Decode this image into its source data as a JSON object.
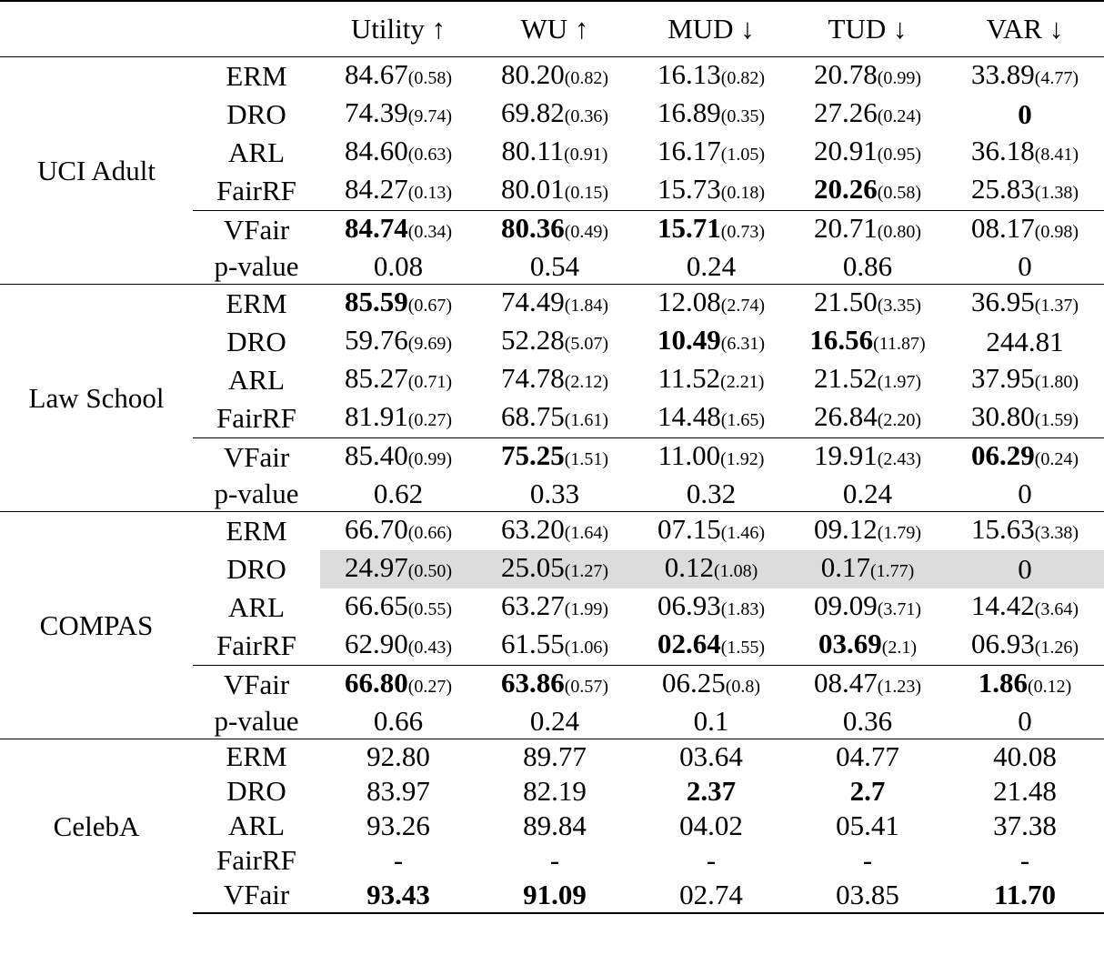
{
  "header": [
    "",
    "",
    "Utility ↑",
    "WU ↑",
    "MUD ↓",
    "TUD ↓",
    "VAR ↓"
  ],
  "groups": [
    {
      "dataset": "UCI Adult",
      "rows": [
        {
          "method": "ERM",
          "cells": [
            [
              "84.67",
              "(0.58)",
              false
            ],
            [
              "80.20",
              "(0.82)",
              false
            ],
            [
              "16.13",
              "(0.82)",
              false
            ],
            [
              "20.78",
              "(0.99)",
              false
            ],
            [
              "33.89",
              "(4.77)",
              false
            ]
          ]
        },
        {
          "method": "DRO",
          "cells": [
            [
              "74.39",
              "(9.74)",
              false
            ],
            [
              "69.82",
              "(0.36)",
              false
            ],
            [
              "16.89",
              "(0.35)",
              false
            ],
            [
              "27.26",
              "(0.24)",
              false
            ],
            [
              "0",
              "",
              true
            ]
          ]
        },
        {
          "method": "ARL",
          "cells": [
            [
              "84.60",
              "(0.63)",
              false
            ],
            [
              "80.11",
              "(0.91)",
              false
            ],
            [
              "16.17",
              "(1.05)",
              false
            ],
            [
              "20.91",
              "(0.95)",
              false
            ],
            [
              "36.18",
              "(8.41)",
              false
            ]
          ]
        },
        {
          "method": "FairRF",
          "cells": [
            [
              "84.27",
              "(0.13)",
              false
            ],
            [
              "80.01",
              "(0.15)",
              false
            ],
            [
              "15.73",
              "(0.18)",
              false
            ],
            [
              "20.26",
              "(0.58)",
              true
            ],
            [
              "25.83",
              "(1.38)",
              false
            ]
          ]
        },
        {
          "method": "VFair",
          "sep": true,
          "cells": [
            [
              "84.74",
              "(0.34)",
              true
            ],
            [
              "80.36",
              "(0.49)",
              true
            ],
            [
              "15.71",
              "(0.73)",
              true
            ],
            [
              "20.71",
              "(0.80)",
              false
            ],
            [
              "08.17",
              "(0.98)",
              false
            ]
          ]
        },
        {
          "method": "p-value",
          "cells": [
            [
              "0.08",
              "",
              false
            ],
            [
              "0.54",
              "",
              false
            ],
            [
              "0.24",
              "",
              false
            ],
            [
              "0.86",
              "",
              false
            ],
            [
              "0",
              "",
              false
            ]
          ]
        }
      ]
    },
    {
      "dataset": "Law School",
      "rows": [
        {
          "method": "ERM",
          "cells": [
            [
              "85.59",
              "(0.67)",
              true
            ],
            [
              "74.49",
              "(1.84)",
              false
            ],
            [
              "12.08",
              "(2.74)",
              false
            ],
            [
              "21.50",
              "(3.35)",
              false
            ],
            [
              "36.95",
              "(1.37)",
              false
            ]
          ]
        },
        {
          "method": "DRO",
          "cells": [
            [
              "59.76",
              "(9.69)",
              false
            ],
            [
              "52.28",
              "(5.07)",
              false
            ],
            [
              "10.49",
              "(6.31)",
              true
            ],
            [
              "16.56",
              "(11.87)",
              true
            ],
            [
              "244.81",
              "",
              false
            ]
          ]
        },
        {
          "method": "ARL",
          "cells": [
            [
              "85.27",
              "(0.71)",
              false
            ],
            [
              "74.78",
              "(2.12)",
              false
            ],
            [
              "11.52",
              "(2.21)",
              false
            ],
            [
              "21.52",
              "(1.97)",
              false
            ],
            [
              "37.95",
              "(1.80)",
              false
            ]
          ]
        },
        {
          "method": "FairRF",
          "cells": [
            [
              "81.91",
              "(0.27)",
              false
            ],
            [
              "68.75",
              "(1.61)",
              false
            ],
            [
              "14.48",
              "(1.65)",
              false
            ],
            [
              "26.84",
              "(2.20)",
              false
            ],
            [
              "30.80",
              "(1.59)",
              false
            ]
          ]
        },
        {
          "method": "VFair",
          "sep": true,
          "cells": [
            [
              "85.40",
              "(0.99)",
              false
            ],
            [
              "75.25",
              "(1.51)",
              true
            ],
            [
              "11.00",
              "(1.92)",
              false
            ],
            [
              "19.91",
              "(2.43)",
              false
            ],
            [
              "06.29",
              "(0.24)",
              true
            ]
          ]
        },
        {
          "method": "p-value",
          "cells": [
            [
              "0.62",
              "",
              false
            ],
            [
              "0.33",
              "",
              false
            ],
            [
              "0.32",
              "",
              false
            ],
            [
              "0.24",
              "",
              false
            ],
            [
              "0",
              "",
              false
            ]
          ]
        }
      ]
    },
    {
      "dataset": "COMPAS",
      "rows": [
        {
          "method": "ERM",
          "cells": [
            [
              "66.70",
              "(0.66)",
              false
            ],
            [
              "63.20",
              "(1.64)",
              false
            ],
            [
              "07.15",
              "(1.46)",
              false
            ],
            [
              "09.12",
              "(1.79)",
              false
            ],
            [
              "15.63",
              "(3.38)",
              false
            ]
          ]
        },
        {
          "method": "DRO",
          "highlight": true,
          "cells": [
            [
              "24.97",
              "(0.50)",
              false
            ],
            [
              "25.05",
              "(1.27)",
              false
            ],
            [
              "0.12",
              "(1.08)",
              false
            ],
            [
              "0.17",
              "(1.77)",
              false
            ],
            [
              "0",
              "",
              false
            ]
          ]
        },
        {
          "method": "ARL",
          "cells": [
            [
              "66.65",
              "(0.55)",
              false
            ],
            [
              "63.27",
              "(1.99)",
              false
            ],
            [
              "06.93",
              "(1.83)",
              false
            ],
            [
              "09.09",
              "(3.71)",
              false
            ],
            [
              "14.42",
              "(3.64)",
              false
            ]
          ]
        },
        {
          "method": "FairRF",
          "cells": [
            [
              "62.90",
              "(0.43)",
              false
            ],
            [
              "61.55",
              "(1.06)",
              false
            ],
            [
              "02.64",
              "(1.55)",
              true
            ],
            [
              "03.69",
              "(2.1)",
              true
            ],
            [
              "06.93",
              "(1.26)",
              false
            ]
          ]
        },
        {
          "method": "VFair",
          "sep": true,
          "cells": [
            [
              "66.80",
              "(0.27)",
              true
            ],
            [
              "63.86",
              "(0.57)",
              true
            ],
            [
              "06.25",
              "(0.8)",
              false
            ],
            [
              "08.47",
              "(1.23)",
              false
            ],
            [
              "1.86",
              "(0.12)",
              true
            ]
          ]
        },
        {
          "method": "p-value",
          "cells": [
            [
              "0.66",
              "",
              false
            ],
            [
              "0.24",
              "",
              false
            ],
            [
              "0.1",
              "",
              false
            ],
            [
              "0.36",
              "",
              false
            ],
            [
              "0",
              "",
              false
            ]
          ]
        }
      ]
    },
    {
      "dataset": "CelebA",
      "rows": [
        {
          "method": "ERM",
          "cells": [
            [
              "92.80",
              "",
              false
            ],
            [
              "89.77",
              "",
              false
            ],
            [
              "03.64",
              "",
              false
            ],
            [
              "04.77",
              "",
              false
            ],
            [
              "40.08",
              "",
              false
            ]
          ]
        },
        {
          "method": "DRO",
          "cells": [
            [
              "83.97",
              "",
              false
            ],
            [
              "82.19",
              "",
              false
            ],
            [
              "2.37",
              "",
              true
            ],
            [
              "2.7",
              "",
              true
            ],
            [
              "21.48",
              "",
              false
            ]
          ]
        },
        {
          "method": "ARL",
          "cells": [
            [
              "93.26",
              "",
              false
            ],
            [
              "89.84",
              "",
              false
            ],
            [
              "04.02",
              "",
              false
            ],
            [
              "05.41",
              "",
              false
            ],
            [
              "37.38",
              "",
              false
            ]
          ]
        },
        {
          "method": "FairRF",
          "cells": [
            [
              "-",
              "",
              false
            ],
            [
              "-",
              "",
              false
            ],
            [
              "-",
              "",
              false
            ],
            [
              "-",
              "",
              false
            ],
            [
              "-",
              "",
              false
            ]
          ]
        },
        {
          "method": "VFair",
          "cells": [
            [
              "93.43",
              "",
              true
            ],
            [
              "91.09",
              "",
              true
            ],
            [
              "02.74",
              "",
              false
            ],
            [
              "03.85",
              "",
              false
            ],
            [
              "11.70",
              "",
              true
            ]
          ]
        }
      ]
    }
  ]
}
